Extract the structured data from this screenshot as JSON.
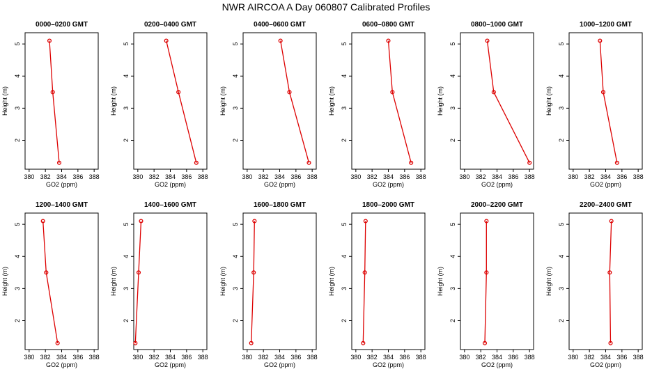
{
  "chart_data": {
    "type": "line",
    "title": "NWR AIRCOA A  Day 060807  Calibrated Profiles",
    "line_color": "#dd0000",
    "marker": "open-circle",
    "xlabel": "GO2 (ppm)",
    "ylabel": "Height (m)",
    "xlim": [
      379.5,
      388.5
    ],
    "ylim": [
      1.1,
      5.35
    ],
    "xticks": [
      380,
      382,
      384,
      386,
      388
    ],
    "yticks": [
      2,
      3,
      4,
      5
    ],
    "heights": [
      5.1,
      3.5,
      1.3
    ],
    "panels": [
      {
        "title": "0000–0200 GMT",
        "values": [
          382.5,
          382.9,
          383.7
        ]
      },
      {
        "title": "0200–0400 GMT",
        "values": [
          383.5,
          385.0,
          387.2
        ]
      },
      {
        "title": "0400–0600 GMT",
        "values": [
          384.1,
          385.2,
          387.6
        ]
      },
      {
        "title": "0600–0800 GMT",
        "values": [
          384.0,
          384.5,
          386.8
        ]
      },
      {
        "title": "0800–1000 GMT",
        "values": [
          382.8,
          383.6,
          388.0
        ]
      },
      {
        "title": "1000–1200 GMT",
        "values": [
          383.3,
          383.7,
          385.4
        ]
      },
      {
        "title": "1200–1400 GMT",
        "values": [
          381.7,
          382.1,
          383.5
        ]
      },
      {
        "title": "1400–1600 GMT",
        "values": [
          380.4,
          380.1,
          379.7
        ]
      },
      {
        "title": "1600–1800 GMT",
        "values": [
          380.9,
          380.8,
          380.5
        ]
      },
      {
        "title": "1800–2000 GMT",
        "values": [
          381.2,
          381.1,
          380.9
        ]
      },
      {
        "title": "2000–2200 GMT",
        "values": [
          382.7,
          382.7,
          382.5
        ]
      },
      {
        "title": "2200–2400 GMT",
        "values": [
          384.7,
          384.5,
          384.6
        ]
      }
    ]
  }
}
